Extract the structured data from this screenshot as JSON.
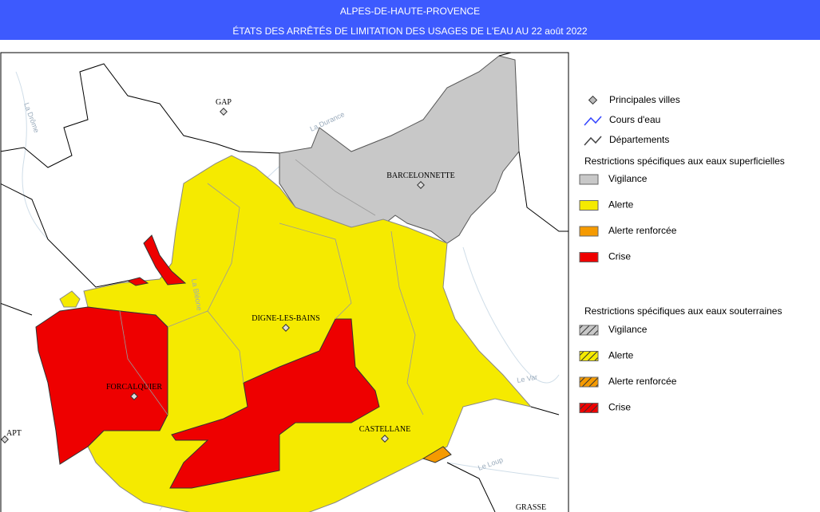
{
  "header": {
    "title": "ALPES-DE-HAUTE-PROVENCE",
    "subtitle": "ÉTATS DES ARRÊTÉS DE LIMITATION DES USAGES DE L'EAU AU 22 août 2022"
  },
  "map": {
    "cities": [
      "GAP",
      "BARCELONNETTE",
      "DIGNE-LES-BAINS",
      "FORCALQUIER",
      "CASTELLANE",
      "APT",
      "GRASSE"
    ],
    "rivers": [
      "La Drôme",
      "La Durance",
      "La Bléone",
      "Le Var",
      "Le Loup"
    ]
  },
  "legend": {
    "items": [
      "Principales villes",
      "Cours d'eau",
      "Départements"
    ],
    "surface": {
      "title": "Restrictions spécifiques aux eaux superficielles",
      "levels": [
        "Vigilance",
        "Alerte",
        "Alerte renforcée",
        "Crise"
      ]
    },
    "ground": {
      "title": "Restrictions spécifiques aux eaux souterraines",
      "levels": [
        "Vigilance",
        "Alerte",
        "Alerte renforcée",
        "Crise"
      ]
    }
  }
}
